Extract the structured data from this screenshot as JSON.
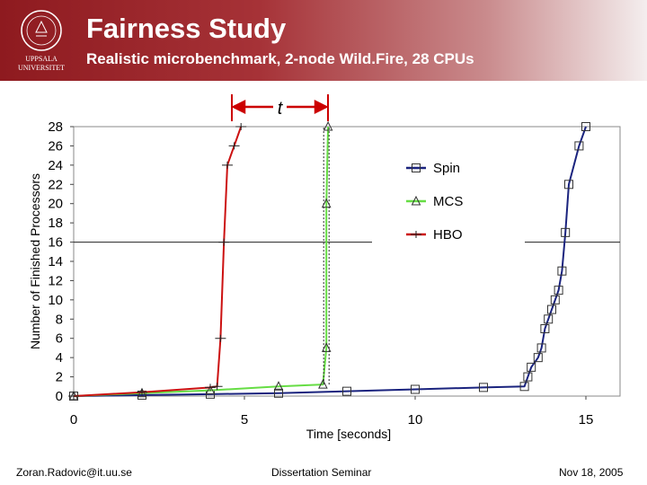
{
  "header": {
    "title": "Fairness Study",
    "subtitle": "Realistic microbenchmark, 2-node Wild.Fire, 28 CPUs",
    "logo": {
      "line1": "UPPSALA",
      "line2": "UNIVERSITET",
      "icon": "university-seal-icon"
    }
  },
  "annotation": {
    "label": "t"
  },
  "footer": {
    "left": "Zoran.Radovic@it.uu.se",
    "center": "Dissertation Seminar",
    "right": "Nov 18, 2005"
  },
  "colors": {
    "header_red": "#8e1a1f",
    "spin": "#1a237e",
    "mcs": "#66dd44",
    "hbo": "#cc1111",
    "annotation": "#cc0000"
  },
  "chart_data": {
    "type": "line",
    "xlabel": "Time [seconds]",
    "ylabel": "Number of Finished Processors",
    "xlim": [
      0,
      16
    ],
    "ylim": [
      0,
      28
    ],
    "x_ticks": [
      0,
      5,
      10,
      15
    ],
    "y_ticks": [
      0,
      2,
      4,
      6,
      8,
      10,
      12,
      14,
      16,
      18,
      20,
      22,
      24,
      26,
      28
    ],
    "grid": false,
    "legend_position": "top-right",
    "series": [
      {
        "name": "Spin",
        "marker": "square",
        "x": [
          0,
          2,
          4,
          6,
          8,
          10,
          12,
          13.2,
          13.3,
          13.4,
          13.6,
          13.7,
          13.8,
          13.9,
          14.0,
          14.1,
          14.2,
          14.3,
          14.4,
          14.5,
          14.8,
          15.0
        ],
        "y": [
          0,
          0.1,
          0.2,
          0.3,
          0.5,
          0.7,
          0.9,
          1,
          2,
          3,
          4,
          5,
          7,
          8,
          9,
          10,
          11,
          13,
          17,
          22,
          26,
          28
        ]
      },
      {
        "name": "MCS",
        "marker": "triangle",
        "x": [
          0,
          2,
          4,
          6,
          7.3,
          7.4,
          7.4,
          7.45
        ],
        "y": [
          0,
          0.3,
          0.6,
          1.0,
          1.2,
          5,
          20,
          28
        ]
      },
      {
        "name": "HBO",
        "marker": "plus",
        "x": [
          0,
          2,
          4,
          4.2,
          4.3,
          4.4,
          4.5,
          4.7,
          4.9
        ],
        "y": [
          0,
          0.4,
          0.9,
          1,
          6,
          16,
          24,
          26,
          28
        ]
      }
    ]
  }
}
